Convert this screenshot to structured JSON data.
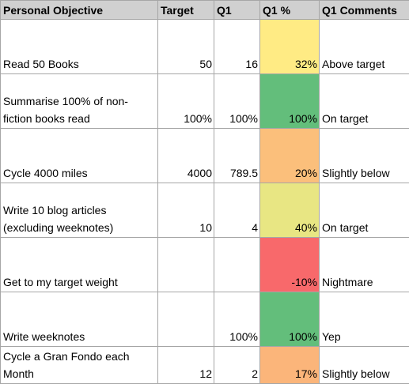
{
  "headers": [
    "Personal Objective",
    "Target",
    "Q1",
    "Q1 %",
    "Q1 Comments"
  ],
  "rows": [
    {
      "objective": "Read 50 Books",
      "target": "50",
      "q1": "16",
      "pct": "32%",
      "comment": "Above target",
      "color": "#ffeb84"
    },
    {
      "objective": "Summarise 100% of non-fiction books read",
      "target": "100%",
      "q1": "100%",
      "pct": "100%",
      "comment": "On target",
      "color": "#63be7b"
    },
    {
      "objective": "Cycle 4000 miles",
      "target": "4000",
      "q1": "789.5",
      "pct": "20%",
      "comment": "Slightly below",
      "color": "#fbbf7b"
    },
    {
      "objective": "Write 10 blog articles (excluding weeknotes)",
      "target": "10",
      "q1": "4",
      "pct": "40%",
      "comment": "On target",
      "color": "#e8e683"
    },
    {
      "objective": "Get to my target weight",
      "target": "",
      "q1": "",
      "pct": "-10%",
      "comment": "Nightmare",
      "color": "#f8696b"
    },
    {
      "objective": "Write weeknotes",
      "target": "",
      "q1": "100%",
      "pct": "100%",
      "comment": "Yep",
      "color": "#63be7b"
    },
    {
      "objective": "Cycle a Gran Fondo each Month",
      "target": "12",
      "q1": "2",
      "pct": "17%",
      "comment": "Slightly below",
      "color": "#fbb57a"
    }
  ]
}
